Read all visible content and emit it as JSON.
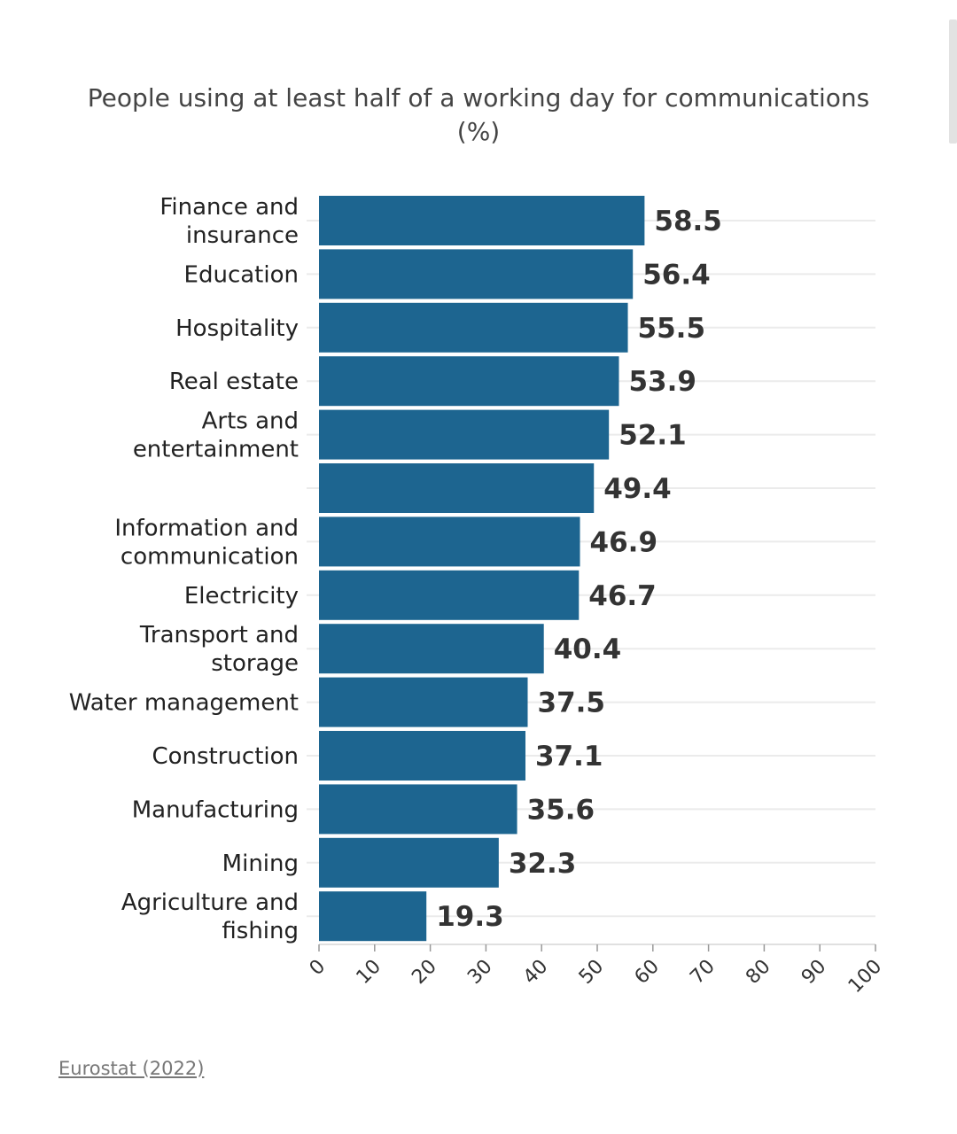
{
  "chart_data": {
    "type": "bar",
    "orientation": "horizontal",
    "title": "People using at least half of a working day for communications",
    "subtitle": "(%)",
    "categories": [
      "Finance and insurance",
      "Education",
      "Hospitality",
      "Real estate",
      "Arts and entertainment",
      "",
      "Information and communication",
      "Electricity",
      "Transport and storage",
      "Water management",
      "Construction",
      "Manufacturing",
      "Mining",
      "Agriculture and fishing"
    ],
    "values": [
      58.5,
      56.4,
      55.5,
      53.9,
      52.1,
      49.4,
      46.9,
      46.7,
      40.4,
      37.5,
      37.1,
      35.6,
      32.3,
      19.3
    ],
    "value_labels": [
      "58.5",
      "56.4",
      "55.5",
      "53.9",
      "52.1",
      "49.4",
      "46.9",
      "46.7",
      "40.4",
      "37.5",
      "37.1",
      "35.6",
      "32.3",
      "19.3"
    ],
    "xlim": [
      0,
      100
    ],
    "xticks": [
      0,
      10,
      20,
      30,
      40,
      50,
      60,
      70,
      80,
      90,
      100
    ],
    "xtick_labels": [
      "0",
      "10",
      "20",
      "30",
      "40",
      "50",
      "60",
      "70",
      "80",
      "90",
      "100"
    ],
    "xlabel": "",
    "ylabel": "",
    "grid": true,
    "bar_color": "#1d6590"
  },
  "source": {
    "label": "Eurostat (2022)"
  }
}
